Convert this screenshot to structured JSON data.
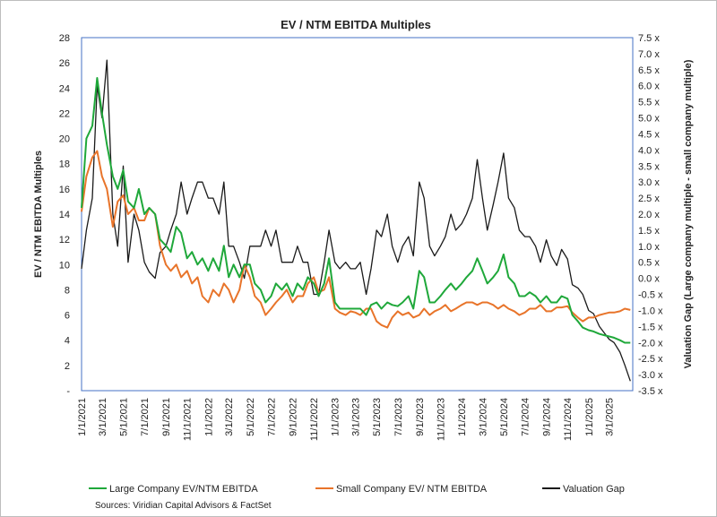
{
  "chart_data": {
    "type": "line",
    "title": "EV / NTM EBITDA Multiples",
    "ylabel": "EV / NTM EBITDA Multiples",
    "y2label": "Valuation Gap (Large company multiple - small company multiple)",
    "ylim": [
      0,
      28
    ],
    "y2lim": [
      -3.5,
      7.5
    ],
    "xlim": [
      "2021-01-01",
      "2025-05-08"
    ],
    "yticks": [
      "-",
      "2",
      "4",
      "6",
      "8",
      "10",
      "12",
      "14",
      "16",
      "18",
      "20",
      "22",
      "24",
      "26",
      "28"
    ],
    "y2ticks": [
      "-3.5 x",
      "-3.0 x",
      "-2.5 x",
      "-2.0 x",
      "-1.5 x",
      "-1.0 x",
      "-0.5 x",
      "0.0 x",
      "0.5 x",
      "1.0 x",
      "1.5 x",
      "2.0 x",
      "2.5 x",
      "3.0 x",
      "3.5 x",
      "4.0 x",
      "4.5 x",
      "5.0 x",
      "5.5 x",
      "6.0 x",
      "6.5 x",
      "7.0 x",
      "7.5 x"
    ],
    "xticks": [
      "1/1/2021",
      "3/1/2021",
      "5/1/2021",
      "7/1/2021",
      "9/1/2021",
      "11/1/2021",
      "1/1/2022",
      "3/1/2022",
      "5/1/2022",
      "7/1/2022",
      "9/1/2022",
      "11/1/2022",
      "1/1/2023",
      "3/1/2023",
      "5/1/2023",
      "7/1/2023",
      "9/1/2023",
      "11/1/2023",
      "1/1/2024",
      "3/1/2024",
      "5/1/2024",
      "7/1/2024",
      "9/1/2024",
      "11/1/2024",
      "1/1/2025",
      "3/1/2025"
    ],
    "legend_position": "bottom",
    "grid": false,
    "series": [
      {
        "name": "Large Company EV/NTM EBITDA",
        "color": "#1fa83a",
        "axis": "left",
        "x": [
          "2021-01-01",
          "2021-01-15",
          "2021-02-01",
          "2021-02-15",
          "2021-03-01",
          "2021-03-15",
          "2021-04-01",
          "2021-04-15",
          "2021-05-01",
          "2021-05-15",
          "2021-06-01",
          "2021-06-15",
          "2021-07-01",
          "2021-07-15",
          "2021-08-01",
          "2021-08-15",
          "2021-09-01",
          "2021-09-15",
          "2021-10-01",
          "2021-10-15",
          "2021-11-01",
          "2021-11-15",
          "2021-12-01",
          "2021-12-15",
          "2022-01-01",
          "2022-01-15",
          "2022-02-01",
          "2022-02-15",
          "2022-03-01",
          "2022-03-15",
          "2022-04-01",
          "2022-04-15",
          "2022-05-01",
          "2022-05-15",
          "2022-06-01",
          "2022-06-15",
          "2022-07-01",
          "2022-07-15",
          "2022-08-01",
          "2022-08-15",
          "2022-09-01",
          "2022-09-15",
          "2022-10-01",
          "2022-10-15",
          "2022-11-01",
          "2022-11-15",
          "2022-12-01",
          "2022-12-15",
          "2023-01-01",
          "2023-01-15",
          "2023-02-01",
          "2023-02-15",
          "2023-03-01",
          "2023-03-15",
          "2023-04-01",
          "2023-04-15",
          "2023-05-01",
          "2023-05-15",
          "2023-06-01",
          "2023-06-15",
          "2023-07-01",
          "2023-07-15",
          "2023-08-01",
          "2023-08-15",
          "2023-09-01",
          "2023-09-15",
          "2023-10-01",
          "2023-10-15",
          "2023-11-01",
          "2023-11-15",
          "2023-12-01",
          "2023-12-15",
          "2024-01-01",
          "2024-01-15",
          "2024-02-01",
          "2024-02-15",
          "2024-03-01",
          "2024-03-15",
          "2024-04-01",
          "2024-04-15",
          "2024-05-01",
          "2024-05-15",
          "2024-06-01",
          "2024-06-15",
          "2024-07-01",
          "2024-07-15",
          "2024-08-01",
          "2024-08-15",
          "2024-09-01",
          "2024-09-15",
          "2024-10-01",
          "2024-10-15",
          "2024-11-01",
          "2024-11-15",
          "2024-12-01",
          "2024-12-15",
          "2025-01-01",
          "2025-01-15",
          "2025-02-01",
          "2025-02-15",
          "2025-03-01",
          "2025-03-15",
          "2025-04-01",
          "2025-04-15",
          "2025-05-01"
        ],
        "values": [
          14.5,
          20.0,
          21.0,
          24.8,
          22.0,
          19.5,
          17.0,
          16.0,
          17.5,
          15.0,
          14.5,
          16.0,
          14.0,
          14.5,
          14.0,
          12.0,
          11.5,
          11.0,
          13.0,
          12.5,
          10.5,
          11.0,
          10.0,
          10.5,
          9.5,
          10.5,
          9.5,
          11.5,
          9.0,
          10.0,
          9.0,
          10.0,
          10.0,
          8.5,
          8.0,
          7.0,
          7.5,
          8.5,
          8.0,
          8.5,
          7.5,
          8.5,
          8.0,
          9.0,
          8.5,
          7.5,
          8.5,
          10.5,
          7.0,
          6.5,
          6.5,
          6.5,
          6.5,
          6.5,
          6.0,
          6.8,
          7.0,
          6.5,
          7.0,
          6.8,
          6.7,
          7.0,
          7.5,
          6.5,
          9.5,
          9.0,
          7.0,
          7.0,
          7.5,
          8.0,
          8.5,
          8.0,
          8.5,
          9.0,
          9.5,
          10.5,
          9.5,
          8.5,
          9.0,
          9.5,
          10.8,
          9.0,
          8.5,
          7.5,
          7.5,
          7.8,
          7.5,
          7.0,
          7.5,
          7.0,
          7.0,
          7.5,
          7.3,
          6.0,
          5.5,
          5.0,
          4.8,
          4.7,
          4.5,
          4.4,
          4.3,
          4.2,
          4.0,
          3.8,
          3.8
        ]
      },
      {
        "name": "Small Company EV/ NTM EBITDA",
        "color": "#e8742a",
        "axis": "left",
        "x": [
          "2021-01-01",
          "2021-01-15",
          "2021-02-01",
          "2021-02-15",
          "2021-03-01",
          "2021-03-15",
          "2021-04-01",
          "2021-04-15",
          "2021-05-01",
          "2021-05-15",
          "2021-06-01",
          "2021-06-15",
          "2021-07-01",
          "2021-07-15",
          "2021-08-01",
          "2021-08-15",
          "2021-09-01",
          "2021-09-15",
          "2021-10-01",
          "2021-10-15",
          "2021-11-01",
          "2021-11-15",
          "2021-12-01",
          "2021-12-15",
          "2022-01-01",
          "2022-01-15",
          "2022-02-01",
          "2022-02-15",
          "2022-03-01",
          "2022-03-15",
          "2022-04-01",
          "2022-04-15",
          "2022-05-01",
          "2022-05-15",
          "2022-06-01",
          "2022-06-15",
          "2022-07-01",
          "2022-07-15",
          "2022-08-01",
          "2022-08-15",
          "2022-09-01",
          "2022-09-15",
          "2022-10-01",
          "2022-10-15",
          "2022-11-01",
          "2022-11-15",
          "2022-12-01",
          "2022-12-15",
          "2023-01-01",
          "2023-01-15",
          "2023-02-01",
          "2023-02-15",
          "2023-03-01",
          "2023-03-15",
          "2023-04-01",
          "2023-04-15",
          "2023-05-01",
          "2023-05-15",
          "2023-06-01",
          "2023-06-15",
          "2023-07-01",
          "2023-07-15",
          "2023-08-01",
          "2023-08-15",
          "2023-09-01",
          "2023-09-15",
          "2023-10-01",
          "2023-10-15",
          "2023-11-01",
          "2023-11-15",
          "2023-12-01",
          "2023-12-15",
          "2024-01-01",
          "2024-01-15",
          "2024-02-01",
          "2024-02-15",
          "2024-03-01",
          "2024-03-15",
          "2024-04-01",
          "2024-04-15",
          "2024-05-01",
          "2024-05-15",
          "2024-06-01",
          "2024-06-15",
          "2024-07-01",
          "2024-07-15",
          "2024-08-01",
          "2024-08-15",
          "2024-09-01",
          "2024-09-15",
          "2024-10-01",
          "2024-10-15",
          "2024-11-01",
          "2024-11-15",
          "2024-12-01",
          "2024-12-15",
          "2025-01-01",
          "2025-01-15",
          "2025-02-01",
          "2025-02-15",
          "2025-03-01",
          "2025-03-15",
          "2025-04-01",
          "2025-04-15",
          "2025-05-01"
        ],
        "values": [
          14.2,
          17.0,
          18.5,
          19.0,
          17.0,
          16.0,
          13.0,
          15.0,
          15.5,
          14.0,
          14.5,
          13.5,
          13.5,
          14.5,
          14.0,
          11.5,
          10.0,
          9.5,
          10.0,
          9.0,
          9.5,
          8.5,
          9.0,
          7.5,
          7.0,
          8.0,
          7.5,
          8.5,
          8.0,
          7.0,
          8.0,
          10.0,
          9.0,
          7.5,
          7.0,
          6.0,
          6.5,
          7.0,
          7.5,
          8.0,
          7.0,
          7.5,
          7.5,
          8.5,
          9.0,
          7.8,
          8.0,
          9.0,
          6.5,
          6.2,
          6.0,
          6.3,
          6.2,
          6.0,
          6.5,
          6.5,
          5.5,
          5.2,
          5.0,
          5.8,
          6.3,
          6.0,
          6.2,
          5.8,
          6.0,
          6.5,
          6.0,
          6.3,
          6.5,
          6.8,
          6.3,
          6.5,
          6.8,
          7.0,
          7.0,
          6.8,
          7.0,
          7.0,
          6.8,
          6.5,
          6.8,
          6.5,
          6.3,
          6.0,
          6.2,
          6.5,
          6.5,
          6.8,
          6.3,
          6.3,
          6.6,
          6.6,
          6.7,
          6.2,
          5.8,
          5.5,
          5.8,
          5.8,
          6.0,
          6.1,
          6.2,
          6.2,
          6.3,
          6.5,
          6.4
        ]
      },
      {
        "name": "Valuation Gap",
        "color": "#1a1a1a",
        "axis": "right",
        "x": [
          "2021-01-01",
          "2021-01-15",
          "2021-02-01",
          "2021-02-15",
          "2021-03-01",
          "2021-03-15",
          "2021-04-01",
          "2021-04-15",
          "2021-05-01",
          "2021-05-15",
          "2021-06-01",
          "2021-06-15",
          "2021-07-01",
          "2021-07-15",
          "2021-08-01",
          "2021-08-15",
          "2021-09-01",
          "2021-09-15",
          "2021-10-01",
          "2021-10-15",
          "2021-11-01",
          "2021-11-15",
          "2021-12-01",
          "2021-12-15",
          "2022-01-01",
          "2022-01-15",
          "2022-02-01",
          "2022-02-15",
          "2022-03-01",
          "2022-03-15",
          "2022-04-01",
          "2022-04-15",
          "2022-05-01",
          "2022-05-15",
          "2022-06-01",
          "2022-06-15",
          "2022-07-01",
          "2022-07-15",
          "2022-08-01",
          "2022-08-15",
          "2022-09-01",
          "2022-09-15",
          "2022-10-01",
          "2022-10-15",
          "2022-11-01",
          "2022-11-15",
          "2022-12-01",
          "2022-12-15",
          "2023-01-01",
          "2023-01-15",
          "2023-02-01",
          "2023-02-15",
          "2023-03-01",
          "2023-03-15",
          "2023-04-01",
          "2023-04-15",
          "2023-05-01",
          "2023-05-15",
          "2023-06-01",
          "2023-06-15",
          "2023-07-01",
          "2023-07-15",
          "2023-08-01",
          "2023-08-15",
          "2023-09-01",
          "2023-09-15",
          "2023-10-01",
          "2023-10-15",
          "2023-11-01",
          "2023-11-15",
          "2023-12-01",
          "2023-12-15",
          "2024-01-01",
          "2024-01-15",
          "2024-02-01",
          "2024-02-15",
          "2024-03-01",
          "2024-03-15",
          "2024-04-01",
          "2024-04-15",
          "2024-05-01",
          "2024-05-15",
          "2024-06-01",
          "2024-06-15",
          "2024-07-01",
          "2024-07-15",
          "2024-08-01",
          "2024-08-15",
          "2024-09-01",
          "2024-09-15",
          "2024-10-01",
          "2024-10-15",
          "2024-11-01",
          "2024-11-15",
          "2024-12-01",
          "2024-12-15",
          "2025-01-01",
          "2025-01-15",
          "2025-02-01",
          "2025-02-15",
          "2025-03-01",
          "2025-03-15",
          "2025-04-01",
          "2025-04-15",
          "2025-05-01"
        ],
        "values": [
          0.3,
          1.5,
          2.5,
          6.0,
          5.0,
          6.8,
          2.0,
          1.0,
          3.5,
          0.5,
          2.0,
          1.5,
          0.5,
          0.2,
          0.0,
          0.8,
          1.0,
          1.5,
          2.0,
          3.0,
          2.0,
          2.5,
          3.0,
          3.0,
          2.5,
          2.5,
          2.0,
          3.0,
          1.0,
          1.0,
          0.5,
          0.0,
          1.0,
          1.0,
          1.0,
          1.5,
          1.0,
          1.5,
          0.5,
          0.5,
          0.5,
          1.0,
          0.5,
          0.5,
          -0.5,
          -0.5,
          0.5,
          1.5,
          0.5,
          0.3,
          0.5,
          0.3,
          0.3,
          0.5,
          -0.5,
          0.3,
          1.5,
          1.3,
          2.0,
          1.0,
          0.5,
          1.0,
          1.3,
          0.7,
          3.0,
          2.5,
          1.0,
          0.7,
          1.0,
          1.3,
          2.0,
          1.5,
          1.7,
          2.0,
          2.5,
          3.7,
          2.5,
          1.5,
          2.3,
          3.0,
          3.9,
          2.5,
          2.2,
          1.5,
          1.3,
          1.3,
          1.0,
          0.5,
          1.2,
          0.7,
          0.4,
          0.9,
          0.6,
          -0.2,
          -0.3,
          -0.5,
          -1.0,
          -1.1,
          -1.5,
          -1.7,
          -1.9,
          -2.0,
          -2.3,
          -2.7,
          -3.2
        ]
      }
    ],
    "sources": "Sources: Viridian Capital Advisors & FactSet"
  }
}
